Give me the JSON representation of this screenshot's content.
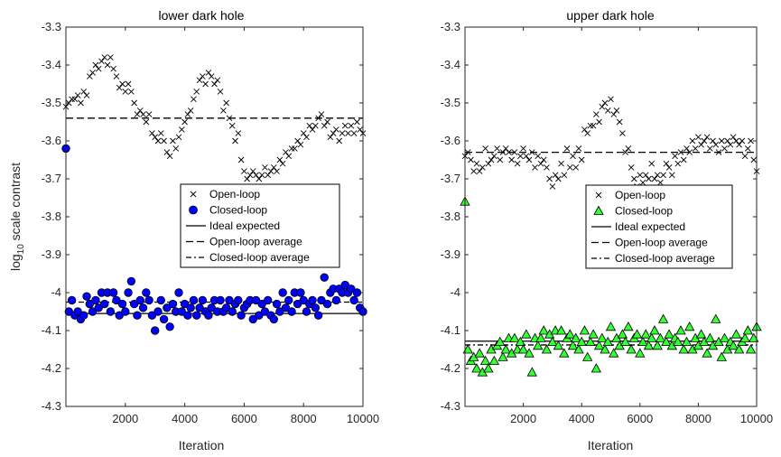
{
  "chart_data": [
    {
      "type": "scatter",
      "title": "lower dark hole",
      "xlabel": "Iteration",
      "ylabel_main": "log",
      "ylabel_sub": "10",
      "ylabel_rest": " scale contrast",
      "xlim": [
        0,
        10000
      ],
      "ylim": [
        -4.3,
        -3.3
      ],
      "xticks": [
        2000,
        4000,
        6000,
        8000,
        10000
      ],
      "yticks": [
        -3.3,
        -3.4,
        -3.5,
        -3.6,
        -3.7,
        -3.8,
        -3.9,
        -4,
        -4.1,
        -4.2,
        -4.3
      ],
      "ytick_labels": [
        "-3.3",
        "-3.4",
        "-3.5",
        "-3.6",
        "-3.7",
        "-3.8",
        "-3.9",
        "-4",
        "-4.1",
        "-4.2",
        "-4.3"
      ],
      "grid": false,
      "legend_position": "center-right",
      "closed_color": "#0000ff",
      "closed_marker": "circle",
      "series": [
        {
          "name": "Open-loop",
          "marker": "x",
          "x": [
            0,
            100,
            200,
            300,
            400,
            500,
            600,
            700,
            800,
            900,
            1000,
            1100,
            1200,
            1300,
            1400,
            1500,
            1600,
            1700,
            1800,
            1900,
            2000,
            2100,
            2200,
            2300,
            2400,
            2500,
            2600,
            2700,
            2800,
            2900,
            3000,
            3100,
            3200,
            3300,
            3400,
            3500,
            3600,
            3700,
            3800,
            3900,
            4000,
            4100,
            4200,
            4300,
            4400,
            4500,
            4600,
            4700,
            4800,
            4900,
            5000,
            5100,
            5200,
            5300,
            5400,
            5500,
            5600,
            5700,
            5800,
            5900,
            6000,
            6100,
            6200,
            6300,
            6400,
            6500,
            6600,
            6700,
            6800,
            6900,
            7000,
            7100,
            7200,
            7300,
            7400,
            7500,
            7600,
            7700,
            7800,
            7900,
            8000,
            8100,
            8200,
            8300,
            8400,
            8500,
            8600,
            8700,
            8800,
            8900,
            9000,
            9100,
            9200,
            9300,
            9400,
            9500,
            9600,
            9700,
            9800,
            9900,
            10000
          ],
          "y": [
            -3.51,
            -3.5,
            -3.49,
            -3.49,
            -3.48,
            -3.5,
            -3.47,
            -3.48,
            -3.43,
            -3.42,
            -3.4,
            -3.41,
            -3.39,
            -3.38,
            -3.4,
            -3.38,
            -3.41,
            -3.43,
            -3.46,
            -3.45,
            -3.47,
            -3.45,
            -3.47,
            -3.5,
            -3.53,
            -3.52,
            -3.53,
            -3.55,
            -3.53,
            -3.58,
            -3.59,
            -3.6,
            -3.58,
            -3.6,
            -3.63,
            -3.64,
            -3.6,
            -3.62,
            -3.59,
            -3.57,
            -3.55,
            -3.53,
            -3.52,
            -3.49,
            -3.47,
            -3.44,
            -3.43,
            -3.45,
            -3.42,
            -3.43,
            -3.45,
            -3.44,
            -3.47,
            -3.52,
            -3.5,
            -3.54,
            -3.56,
            -3.6,
            -3.58,
            -3.65,
            -3.68,
            -3.7,
            -3.69,
            -3.68,
            -3.69,
            -3.7,
            -3.69,
            -3.67,
            -3.69,
            -3.68,
            -3.67,
            -3.68,
            -3.65,
            -3.66,
            -3.63,
            -3.64,
            -3.62,
            -3.62,
            -3.6,
            -3.61,
            -3.58,
            -3.59,
            -3.56,
            -3.57,
            -3.56,
            -3.54,
            -3.53,
            -3.56,
            -3.55,
            -3.59,
            -3.58,
            -3.57,
            -3.6,
            -3.58,
            -3.56,
            -3.58,
            -3.56,
            -3.58,
            -3.55,
            -3.57,
            -3.58
          ]
        },
        {
          "name": "Closed-loop",
          "marker": "circle",
          "x": [
            0,
            100,
            200,
            300,
            400,
            500,
            600,
            700,
            800,
            900,
            1000,
            1100,
            1200,
            1300,
            1400,
            1500,
            1600,
            1700,
            1800,
            1900,
            2000,
            2100,
            2200,
            2300,
            2400,
            2500,
            2600,
            2700,
            2800,
            2900,
            3000,
            3100,
            3200,
            3300,
            3400,
            3500,
            3600,
            3700,
            3800,
            3900,
            4000,
            4100,
            4200,
            4300,
            4400,
            4500,
            4600,
            4700,
            4800,
            4900,
            5000,
            5100,
            5200,
            5300,
            5400,
            5500,
            5600,
            5700,
            5800,
            5900,
            6000,
            6100,
            6200,
            6300,
            6400,
            6500,
            6600,
            6700,
            6800,
            6900,
            7000,
            7100,
            7200,
            7300,
            7400,
            7500,
            7600,
            7700,
            7800,
            7900,
            8000,
            8100,
            8200,
            8300,
            8400,
            8500,
            8600,
            8700,
            8800,
            8900,
            9000,
            9100,
            9200,
            9300,
            9400,
            9500,
            9600,
            9700,
            9800,
            9900,
            10000
          ],
          "y": [
            -3.62,
            -4.05,
            -4.02,
            -4.06,
            -4.05,
            -4.07,
            -4.06,
            -4.01,
            -4.03,
            -4.05,
            -4.02,
            -4.04,
            -4.0,
            -4.03,
            -4.0,
            -4.05,
            -4.0,
            -4.02,
            -4.06,
            -4.03,
            -4.05,
            -4.0,
            -3.97,
            -4.03,
            -4.06,
            -4.02,
            -4.04,
            -4.0,
            -4.02,
            -4.06,
            -4.1,
            -4.05,
            -4.02,
            -4.07,
            -4.04,
            -4.09,
            -4.03,
            -4.05,
            -4.0,
            -4.05,
            -4.03,
            -4.06,
            -4.04,
            -4.02,
            -4.06,
            -4.04,
            -4.02,
            -4.05,
            -4.06,
            -4.04,
            -4.02,
            -4.05,
            -4.02,
            -4.05,
            -4.04,
            -4.02,
            -4.05,
            -4.03,
            -4.02,
            -4.06,
            -4.04,
            -4.03,
            -4.02,
            -4.07,
            -4.02,
            -4.06,
            -4.03,
            -4.05,
            -4.02,
            -4.06,
            -4.07,
            -4.03,
            -4.05,
            -4.0,
            -4.04,
            -4.02,
            -4.05,
            -4.0,
            -4.03,
            -4.0,
            -4.02,
            -4.05,
            -4.03,
            -4.02,
            -4.04,
            -4.06,
            -4.02,
            -3.96,
            -4.03,
            -4.0,
            -3.99,
            -4.02,
            -3.99,
            -4.0,
            -3.98,
            -4.0,
            -3.99,
            -4.02,
            -4.0,
            -4.04,
            -4.05
          ]
        },
        {
          "name": "Ideal expected",
          "line": "solid",
          "value": -4.055
        },
        {
          "name": "Open-loop average",
          "line": "dashed",
          "value": -3.54
        },
        {
          "name": "Closed-loop average",
          "line": "dashdot",
          "value": -4.025
        }
      ]
    },
    {
      "type": "scatter",
      "title": "upper dark hole",
      "xlabel": "Iteration",
      "xlim": [
        0,
        10000
      ],
      "ylim": [
        -4.3,
        -3.3
      ],
      "xticks": [
        2000,
        4000,
        6000,
        8000,
        10000
      ],
      "yticks": [
        -3.3,
        -3.4,
        -3.5,
        -3.6,
        -3.7,
        -3.8,
        -3.9,
        -4,
        -4.1,
        -4.2,
        -4.3
      ],
      "ytick_labels": [
        "-3.3",
        "-3.4",
        "-3.5",
        "-3.6",
        "-3.7",
        "-3.8",
        "-3.9",
        "-4",
        "-4.1",
        "-4.2",
        "-4.3"
      ],
      "grid": false,
      "legend_position": "center-right",
      "closed_color": "#33ff33",
      "closed_marker": "triangle",
      "series": [
        {
          "name": "Open-loop",
          "marker": "x",
          "x": [
            0,
            100,
            200,
            300,
            400,
            500,
            600,
            700,
            800,
            900,
            1000,
            1100,
            1200,
            1300,
            1400,
            1500,
            1600,
            1700,
            1800,
            1900,
            2000,
            2100,
            2200,
            2300,
            2400,
            2500,
            2600,
            2700,
            2800,
            2900,
            3000,
            3100,
            3200,
            3300,
            3400,
            3500,
            3600,
            3700,
            3800,
            3900,
            4000,
            4100,
            4200,
            4300,
            4400,
            4500,
            4600,
            4700,
            4800,
            4900,
            5000,
            5100,
            5200,
            5300,
            5400,
            5500,
            5600,
            5700,
            5800,
            5900,
            6000,
            6100,
            6200,
            6300,
            6400,
            6500,
            6600,
            6700,
            6800,
            6900,
            7000,
            7100,
            7200,
            7300,
            7400,
            7500,
            7600,
            7700,
            7800,
            7900,
            8000,
            8100,
            8200,
            8300,
            8400,
            8500,
            8600,
            8700,
            8800,
            8900,
            9000,
            9100,
            9200,
            9300,
            9400,
            9500,
            9600,
            9700,
            9800,
            9900,
            10000
          ],
          "y": [
            -3.64,
            -3.63,
            -3.65,
            -3.68,
            -3.66,
            -3.68,
            -3.67,
            -3.62,
            -3.66,
            -3.65,
            -3.64,
            -3.62,
            -3.65,
            -3.63,
            -3.62,
            -3.63,
            -3.65,
            -3.63,
            -3.66,
            -3.64,
            -3.62,
            -3.64,
            -3.65,
            -3.63,
            -3.67,
            -3.64,
            -3.66,
            -3.65,
            -3.67,
            -3.7,
            -3.72,
            -3.69,
            -3.7,
            -3.66,
            -3.69,
            -3.62,
            -3.67,
            -3.64,
            -3.67,
            -3.62,
            -3.65,
            -3.57,
            -3.58,
            -3.56,
            -3.56,
            -3.53,
            -3.55,
            -3.51,
            -3.5,
            -3.52,
            -3.49,
            -3.53,
            -3.52,
            -3.55,
            -3.58,
            -3.63,
            -3.62,
            -3.67,
            -3.7,
            -3.72,
            -3.69,
            -3.71,
            -3.69,
            -3.7,
            -3.66,
            -3.7,
            -3.69,
            -3.71,
            -3.69,
            -3.66,
            -3.67,
            -3.69,
            -3.64,
            -3.66,
            -3.63,
            -3.65,
            -3.62,
            -3.63,
            -3.6,
            -3.62,
            -3.59,
            -3.61,
            -3.6,
            -3.59,
            -3.62,
            -3.6,
            -3.61,
            -3.63,
            -3.6,
            -3.62,
            -3.6,
            -3.61,
            -3.59,
            -3.6,
            -3.61,
            -3.6,
            -3.64,
            -3.62,
            -3.6,
            -3.65,
            -3.68
          ]
        },
        {
          "name": "Closed-loop",
          "marker": "triangle",
          "x": [
            0,
            100,
            200,
            300,
            400,
            500,
            600,
            700,
            800,
            900,
            1000,
            1100,
            1200,
            1300,
            1400,
            1500,
            1600,
            1700,
            1800,
            1900,
            2000,
            2100,
            2200,
            2300,
            2400,
            2500,
            2600,
            2700,
            2800,
            2900,
            3000,
            3100,
            3200,
            3300,
            3400,
            3500,
            3600,
            3700,
            3800,
            3900,
            4000,
            4100,
            4200,
            4300,
            4400,
            4500,
            4600,
            4700,
            4800,
            4900,
            5000,
            5100,
            5200,
            5300,
            5400,
            5500,
            5600,
            5700,
            5800,
            5900,
            6000,
            6100,
            6200,
            6300,
            6400,
            6500,
            6600,
            6700,
            6800,
            6900,
            7000,
            7100,
            7200,
            7300,
            7400,
            7500,
            7600,
            7700,
            7800,
            7900,
            8000,
            8100,
            8200,
            8300,
            8400,
            8500,
            8600,
            8700,
            8800,
            8900,
            9000,
            9100,
            9200,
            9300,
            9400,
            9500,
            9600,
            9700,
            9800,
            9900,
            10000
          ],
          "y": [
            -3.76,
            -4.15,
            -4.18,
            -4.17,
            -4.2,
            -4.16,
            -4.21,
            -4.18,
            -4.2,
            -4.15,
            -4.18,
            -4.14,
            -4.13,
            -4.17,
            -4.15,
            -4.12,
            -4.16,
            -4.12,
            -4.15,
            -4.13,
            -4.15,
            -4.11,
            -4.16,
            -4.21,
            -4.12,
            -4.14,
            -4.12,
            -4.1,
            -4.15,
            -4.11,
            -4.13,
            -4.1,
            -4.14,
            -4.1,
            -4.16,
            -4.12,
            -4.11,
            -4.14,
            -4.12,
            -4.15,
            -4.13,
            -4.1,
            -4.17,
            -4.13,
            -4.11,
            -4.2,
            -4.14,
            -4.12,
            -4.15,
            -4.13,
            -4.09,
            -4.16,
            -4.12,
            -4.14,
            -4.11,
            -4.13,
            -4.09,
            -4.15,
            -4.12,
            -4.11,
            -4.16,
            -4.13,
            -4.11,
            -4.14,
            -4.12,
            -4.1,
            -4.14,
            -4.12,
            -4.07,
            -4.13,
            -4.11,
            -4.14,
            -4.12,
            -4.13,
            -4.1,
            -4.15,
            -4.13,
            -4.09,
            -4.15,
            -4.12,
            -4.14,
            -4.11,
            -4.13,
            -4.16,
            -4.12,
            -4.14,
            -4.07,
            -4.13,
            -4.17,
            -4.12,
            -4.15,
            -4.13,
            -4.14,
            -4.11,
            -4.15,
            -4.13,
            -4.12,
            -4.1,
            -4.15,
            -4.12,
            -4.09
          ]
        },
        {
          "name": "Ideal expected",
          "line": "solid",
          "value": -4.128
        },
        {
          "name": "Open-loop average",
          "line": "dashed",
          "value": -3.63
        },
        {
          "name": "Closed-loop average",
          "line": "dashdot",
          "value": -4.138
        }
      ]
    }
  ]
}
